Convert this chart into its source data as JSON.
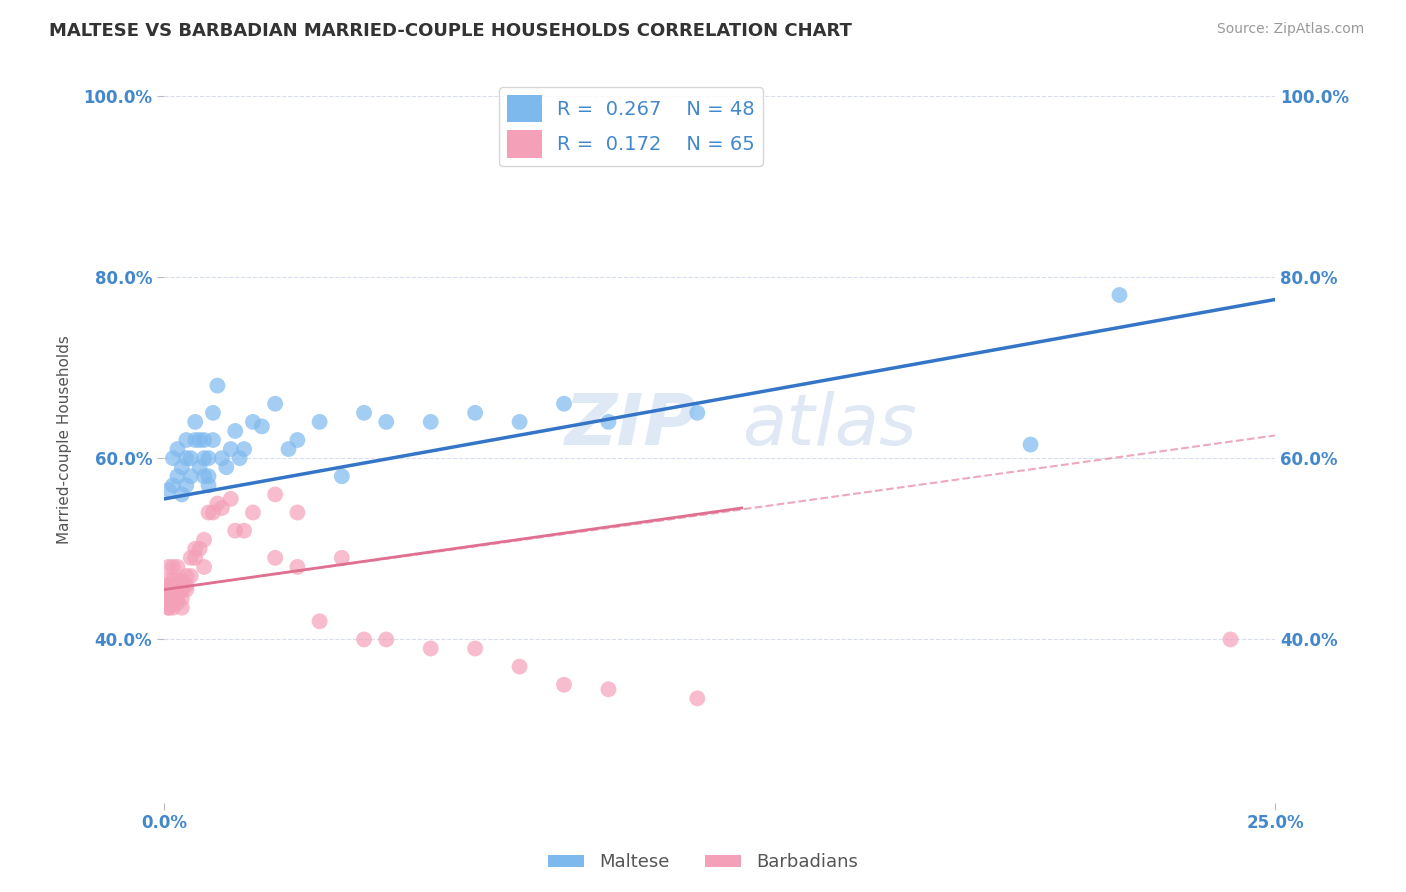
{
  "title": "MALTESE VS BARBADIAN MARRIED-COUPLE HOUSEHOLDS CORRELATION CHART",
  "source": "Source: ZipAtlas.com",
  "ylabel": "Married-couple Households",
  "xlim": [
    0.0,
    0.25
  ],
  "ylim": [
    0.22,
    1.02
  ],
  "xtick_positions": [
    0.0,
    0.25
  ],
  "xtick_labels": [
    "0.0%",
    "25.0%"
  ],
  "ytick_positions": [
    0.4,
    0.6,
    0.8,
    1.0
  ],
  "ytick_labels": [
    "40.0%",
    "60.0%",
    "80.0%",
    "100.0%"
  ],
  "watermark": "ZIPatlas",
  "legend_r_maltese": "0.267",
  "legend_n_maltese": "48",
  "legend_r_barbadian": "0.172",
  "legend_n_barbadian": "65",
  "color_maltese": "#7EB9EE",
  "color_barbadian": "#F4A0B8",
  "color_line_maltese": "#3575C8",
  "color_line_barbadian": "#E07090",
  "background_color": "#ffffff",
  "grid_color": "#d8dded",
  "title_color": "#333333",
  "axis_color": "#4488CC",
  "maltese_x": [
    0.001,
    0.002,
    0.002,
    0.003,
    0.003,
    0.004,
    0.004,
    0.005,
    0.005,
    0.005,
    0.006,
    0.006,
    0.007,
    0.007,
    0.008,
    0.008,
    0.009,
    0.009,
    0.009,
    0.01,
    0.01,
    0.01,
    0.011,
    0.011,
    0.012,
    0.013,
    0.014,
    0.015,
    0.016,
    0.017,
    0.018,
    0.02,
    0.022,
    0.025,
    0.028,
    0.03,
    0.035,
    0.04,
    0.045,
    0.05,
    0.06,
    0.07,
    0.08,
    0.09,
    0.1,
    0.12,
    0.195,
    0.215
  ],
  "maltese_y": [
    0.565,
    0.57,
    0.6,
    0.58,
    0.61,
    0.56,
    0.59,
    0.57,
    0.6,
    0.62,
    0.58,
    0.6,
    0.62,
    0.64,
    0.59,
    0.62,
    0.58,
    0.6,
    0.62,
    0.57,
    0.58,
    0.6,
    0.62,
    0.65,
    0.68,
    0.6,
    0.59,
    0.61,
    0.63,
    0.6,
    0.61,
    0.64,
    0.635,
    0.66,
    0.61,
    0.62,
    0.64,
    0.58,
    0.65,
    0.64,
    0.64,
    0.65,
    0.64,
    0.66,
    0.64,
    0.65,
    0.615,
    0.78
  ],
  "barbadian_x": [
    0.001,
    0.001,
    0.001,
    0.001,
    0.001,
    0.001,
    0.001,
    0.001,
    0.001,
    0.001,
    0.001,
    0.002,
    0.002,
    0.002,
    0.002,
    0.002,
    0.002,
    0.002,
    0.002,
    0.002,
    0.002,
    0.003,
    0.003,
    0.003,
    0.003,
    0.003,
    0.003,
    0.003,
    0.004,
    0.004,
    0.004,
    0.004,
    0.005,
    0.005,
    0.005,
    0.006,
    0.006,
    0.007,
    0.007,
    0.008,
    0.009,
    0.009,
    0.01,
    0.011,
    0.012,
    0.013,
    0.015,
    0.016,
    0.018,
    0.02,
    0.025,
    0.025,
    0.03,
    0.03,
    0.035,
    0.04,
    0.045,
    0.05,
    0.06,
    0.07,
    0.08,
    0.09,
    0.1,
    0.12,
    0.24
  ],
  "barbadian_y": [
    0.48,
    0.46,
    0.455,
    0.445,
    0.435,
    0.445,
    0.44,
    0.435,
    0.465,
    0.455,
    0.44,
    0.48,
    0.465,
    0.45,
    0.445,
    0.46,
    0.445,
    0.44,
    0.435,
    0.445,
    0.44,
    0.48,
    0.465,
    0.46,
    0.455,
    0.445,
    0.44,
    0.45,
    0.455,
    0.445,
    0.435,
    0.465,
    0.47,
    0.455,
    0.46,
    0.49,
    0.47,
    0.49,
    0.5,
    0.5,
    0.48,
    0.51,
    0.54,
    0.54,
    0.55,
    0.545,
    0.555,
    0.52,
    0.52,
    0.54,
    0.49,
    0.56,
    0.48,
    0.54,
    0.42,
    0.49,
    0.4,
    0.4,
    0.39,
    0.39,
    0.37,
    0.35,
    0.345,
    0.335,
    0.4
  ],
  "line_maltese_x0": 0.0,
  "line_maltese_y0": 0.555,
  "line_maltese_x1": 0.25,
  "line_maltese_y1": 0.775,
  "line_barbadian_x0": 0.0,
  "line_barbadian_y0": 0.455,
  "line_barbadian_x1": 0.13,
  "line_barbadian_y1": 0.545,
  "line_dashed_x0": 0.0,
  "line_dashed_y0": 0.455,
  "line_dashed_x1": 0.25,
  "line_dashed_y1": 0.625
}
